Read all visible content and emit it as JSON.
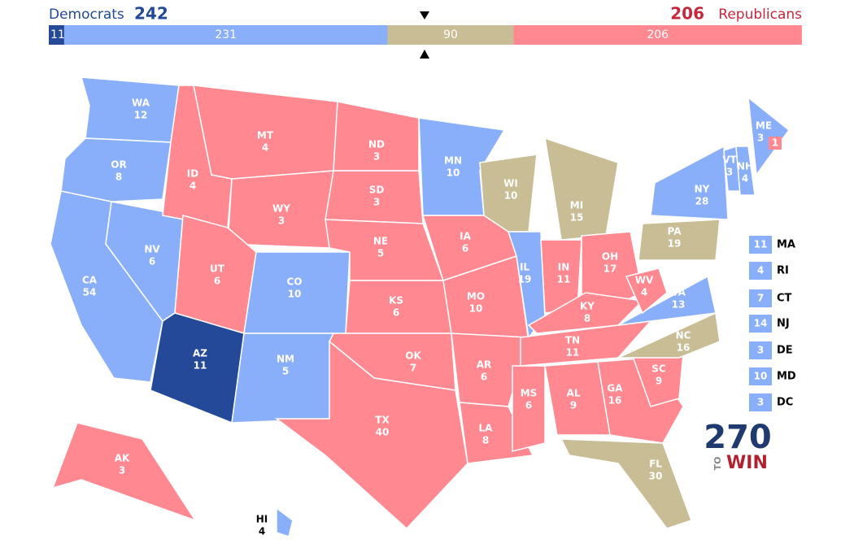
{
  "header": {
    "dem_label": "Democrats",
    "dem_total": 242,
    "rep_total": 206,
    "rep_label": "Republicans",
    "dem_color": "#244999",
    "rep_color": "#c8283e"
  },
  "bar": [
    {
      "value": 11,
      "color": "#244999"
    },
    {
      "value": 231,
      "color": "#8aaffa"
    },
    {
      "value": 90,
      "color": "#c9bd96"
    },
    {
      "value": 206,
      "color": "#ff8891"
    }
  ],
  "states": [
    {
      "abbr": "WA",
      "votes": 12,
      "color": "#8aaffa"
    },
    {
      "abbr": "OR",
      "votes": 8,
      "color": "#8aaffa"
    },
    {
      "abbr": "CA",
      "votes": 54,
      "color": "#8aaffa"
    },
    {
      "abbr": "NV",
      "votes": 6,
      "color": "#8aaffa"
    },
    {
      "abbr": "ID",
      "votes": 4,
      "color": "#ff8891"
    },
    {
      "abbr": "MT",
      "votes": 4,
      "color": "#ff8891"
    },
    {
      "abbr": "WY",
      "votes": 3,
      "color": "#ff8891"
    },
    {
      "abbr": "UT",
      "votes": 6,
      "color": "#ff8891"
    },
    {
      "abbr": "AZ",
      "votes": 11,
      "color": "#244999"
    },
    {
      "abbr": "CO",
      "votes": 10,
      "color": "#8aaffa"
    },
    {
      "abbr": "NM",
      "votes": 5,
      "color": "#8aaffa"
    },
    {
      "abbr": "ND",
      "votes": 3,
      "color": "#ff8891"
    },
    {
      "abbr": "SD",
      "votes": 3,
      "color": "#ff8891"
    },
    {
      "abbr": "NE",
      "votes": 5,
      "color": "#ff8891"
    },
    {
      "abbr": "KS",
      "votes": 6,
      "color": "#ff8891"
    },
    {
      "abbr": "OK",
      "votes": 7,
      "color": "#ff8891"
    },
    {
      "abbr": "TX",
      "votes": 40,
      "color": "#ff8891"
    },
    {
      "abbr": "MN",
      "votes": 10,
      "color": "#8aaffa"
    },
    {
      "abbr": "IA",
      "votes": 6,
      "color": "#ff8891"
    },
    {
      "abbr": "MO",
      "votes": 10,
      "color": "#ff8891"
    },
    {
      "abbr": "AR",
      "votes": 6,
      "color": "#ff8891"
    },
    {
      "abbr": "LA",
      "votes": 8,
      "color": "#ff8891"
    },
    {
      "abbr": "WI",
      "votes": 10,
      "color": "#c9bd96"
    },
    {
      "abbr": "IL",
      "votes": 19,
      "color": "#8aaffa"
    },
    {
      "abbr": "MI",
      "votes": 15,
      "color": "#c9bd96"
    },
    {
      "abbr": "IN",
      "votes": 11,
      "color": "#ff8891"
    },
    {
      "abbr": "OH",
      "votes": 17,
      "color": "#ff8891"
    },
    {
      "abbr": "KY",
      "votes": 8,
      "color": "#ff8891"
    },
    {
      "abbr": "TN",
      "votes": 11,
      "color": "#ff8891"
    },
    {
      "abbr": "MS",
      "votes": 6,
      "color": "#ff8891"
    },
    {
      "abbr": "AL",
      "votes": 9,
      "color": "#ff8891"
    },
    {
      "abbr": "GA",
      "votes": 16,
      "color": "#ff8891"
    },
    {
      "abbr": "FL",
      "votes": 30,
      "color": "#c9bd96"
    },
    {
      "abbr": "SC",
      "votes": 9,
      "color": "#ff8891"
    },
    {
      "abbr": "NC",
      "votes": 16,
      "color": "#c9bd96"
    },
    {
      "abbr": "VA",
      "votes": 13,
      "color": "#8aaffa"
    },
    {
      "abbr": "WV",
      "votes": 4,
      "color": "#ff8891"
    },
    {
      "abbr": "PA",
      "votes": 19,
      "color": "#c9bd96"
    },
    {
      "abbr": "NY",
      "votes": 28,
      "color": "#8aaffa"
    },
    {
      "abbr": "ME",
      "votes": 3,
      "color": "#8aaffa"
    },
    {
      "abbr": "VT",
      "votes": 3,
      "color": "#8aaffa"
    },
    {
      "abbr": "NH",
      "votes": 4,
      "color": "#8aaffa"
    },
    {
      "abbr": "AK",
      "votes": 3,
      "color": "#ff8891"
    },
    {
      "abbr": "HI",
      "votes": 4,
      "color": "#8aaffa"
    }
  ],
  "me_district": {
    "votes": 1,
    "color": "#ff8891"
  },
  "small_states": [
    {
      "abbr": "MA",
      "votes": 11,
      "color": "#8aaffa"
    },
    {
      "abbr": "RI",
      "votes": 4,
      "color": "#8aaffa"
    },
    {
      "abbr": "CT",
      "votes": 7,
      "color": "#8aaffa"
    },
    {
      "abbr": "NJ",
      "votes": 14,
      "color": "#8aaffa"
    },
    {
      "abbr": "DE",
      "votes": 3,
      "color": "#8aaffa"
    },
    {
      "abbr": "MD",
      "votes": 10,
      "color": "#8aaffa"
    },
    {
      "abbr": "DC",
      "votes": 3,
      "color": "#8aaffa"
    }
  ],
  "logo": {
    "number": "270",
    "to": "TO",
    "win": "WIN"
  }
}
